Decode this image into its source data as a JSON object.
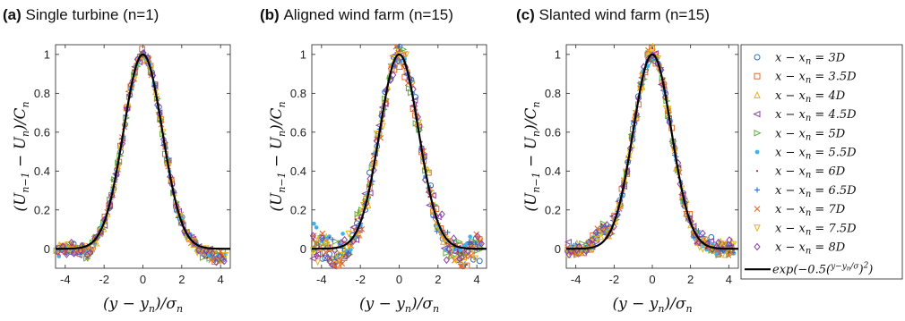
{
  "chart_data": [
    {
      "type": "scatter",
      "panel_label": "(a)",
      "title": "Single turbine (n=1)",
      "xlabel": "(y − y",
      "xlabel_sub": "n",
      "xlabel_tail": ")/σ",
      "xlabel_sub2": "n",
      "ylabel": "(U",
      "xlim": [
        -4.5,
        4.5
      ],
      "ylim": [
        -0.1,
        1.05
      ],
      "xticks": [
        "-4",
        "-2",
        "0",
        "2",
        "4"
      ],
      "yticks": [
        "0",
        "0.2",
        "0.4",
        "0.6",
        "0.8",
        "1"
      ],
      "fit": {
        "name": "exp(−0.5((y−y_n)/σ)²)",
        "function": "gaussian",
        "sigma": 1,
        "amplitude": 1
      },
      "spread": 0.025
    },
    {
      "type": "scatter",
      "panel_label": "(b)",
      "title": "Aligned wind farm (n=15)",
      "xlabel": "(y − y",
      "xlim": [
        -4.5,
        4.5
      ],
      "ylim": [
        -0.1,
        1.05
      ],
      "xticks": [
        "-4",
        "-2",
        "0",
        "2",
        "4"
      ],
      "yticks": [
        "0",
        "0.2",
        "0.4",
        "0.6",
        "0.8",
        "1"
      ],
      "fit": {
        "name": "exp(−0.5((y−y_n)/σ)²)",
        "function": "gaussian",
        "sigma": 1,
        "amplitude": 1
      },
      "spread": 0.06
    },
    {
      "type": "scatter",
      "panel_label": "(c)",
      "title": "Slanted wind farm (n=15)",
      "xlabel": "(y − y",
      "xlim": [
        -4.5,
        4.5
      ],
      "ylim": [
        -0.1,
        1.05
      ],
      "xticks": [
        "-4",
        "-2",
        "0",
        "2",
        "4"
      ],
      "yticks": [
        "0",
        "0.2",
        "0.4",
        "0.6",
        "0.8",
        "1"
      ],
      "fit": {
        "name": "exp(−0.5((y−y_n)/σ)²)",
        "function": "gaussian",
        "sigma": 1,
        "amplitude": 1
      },
      "spread": 0.035
    }
  ],
  "series": [
    {
      "name": "x − x_n = 3D",
      "rhs": "3D",
      "marker": "circle",
      "color": "#2f6fc2"
    },
    {
      "name": "x − x_n = 3.5D",
      "rhs": "3.5D",
      "marker": "square",
      "color": "#e06a2c"
    },
    {
      "name": "x − x_n = 4D",
      "rhs": "4D",
      "marker": "triangle-up",
      "color": "#e3b321"
    },
    {
      "name": "x − x_n = 4.5D",
      "rhs": "4.5D",
      "marker": "triangle-left",
      "color": "#8a3fa3"
    },
    {
      "name": "x − x_n = 5D",
      "rhs": "5D",
      "marker": "triangle-right",
      "color": "#5fae3a"
    },
    {
      "name": "x − x_n = 5.5D",
      "rhs": "5.5D",
      "marker": "dot-filled",
      "color": "#3fb2e8"
    },
    {
      "name": "x − x_n = 6D",
      "rhs": "6D",
      "marker": "point",
      "color": "#a2243a"
    },
    {
      "name": "x − x_n = 6.5D",
      "rhs": "6.5D",
      "marker": "plus",
      "color": "#2f6fc2"
    },
    {
      "name": "x − x_n = 7D",
      "rhs": "7D",
      "marker": "cross",
      "color": "#e06a2c"
    },
    {
      "name": "x − x_n = 7.5D",
      "rhs": "7.5D",
      "marker": "triangle-down",
      "color": "#e3b321"
    },
    {
      "name": "x − x_n = 8D",
      "rhs": "8D",
      "marker": "diamond",
      "color": "#8a3fa3"
    }
  ],
  "legend": {
    "position": "right",
    "lhs": "x − x",
    "lhs_sub": "n",
    "fit_label": "exp(−0.5(",
    "fit_frac_num": "y−y",
    "fit_frac_num_sub": "n",
    "fit_frac_den": "σ",
    "fit_tail": ")",
    "fit_exp": "2",
    "fit_close": ")",
    "fit_color": "#000000"
  },
  "ylabel_parts": {
    "a": "(U",
    "sub1": "n−1",
    "b": " − U",
    "sub2": "n",
    "c": ")/C",
    "sub3": "n"
  }
}
